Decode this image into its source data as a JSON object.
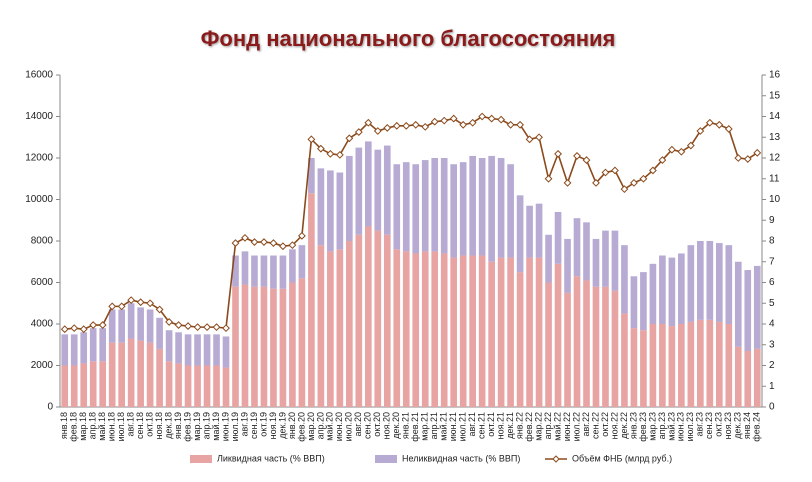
{
  "chart_data": {
    "type": "bar",
    "title": "Фонд национального благосостояния",
    "categories": [
      "янв.18",
      "фев.18",
      "мар.18",
      "апр.18",
      "май.18",
      "июн.18",
      "июл.18",
      "авг.18",
      "сен.18",
      "окт.18",
      "ноя.18",
      "дек.18",
      "янв.19",
      "фев.19",
      "мар.19",
      "апр.19",
      "май.19",
      "июн.19",
      "июл.19",
      "авг.19",
      "сен.19",
      "окт.19",
      "ноя.19",
      "дек.19",
      "янв.20",
      "фев.20",
      "мар.20",
      "апр.20",
      "май.20",
      "июн.20",
      "июл.20",
      "авг.20",
      "сен.20",
      "окт.20",
      "ноя.20",
      "дек.20",
      "янв.21",
      "фев.21",
      "мар.21",
      "апр.21",
      "май.21",
      "июн.21",
      "июл.21",
      "авг.21",
      "сен.21",
      "окт.21",
      "ноя.21",
      "дек.21",
      "янв.22",
      "фев.22",
      "мар.22",
      "апр.22",
      "май.22",
      "июн.22",
      "июл.22",
      "авг.22",
      "сен.22",
      "окт.22",
      "ноя.22",
      "дек.22",
      "янв.23",
      "фев.23",
      "мар.23",
      "апр.23",
      "май.23",
      "июн.23",
      "июл.23",
      "авг.23",
      "сен.23",
      "окт.23",
      "ноя.23",
      "дек.23",
      "янв.24",
      "фев.24"
    ],
    "series": [
      {
        "name": "Ликвидная часть (% ВВП)",
        "type": "bar",
        "axis": "y2",
        "color": "#e8a3a3",
        "values": [
          2.0,
          2.0,
          2.1,
          2.2,
          2.2,
          3.1,
          3.1,
          3.3,
          3.2,
          3.1,
          2.8,
          2.2,
          2.1,
          2.0,
          2.0,
          2.0,
          2.0,
          1.9,
          5.8,
          5.9,
          5.8,
          5.8,
          5.7,
          5.7,
          6.0,
          6.2,
          10.3,
          7.8,
          7.5,
          7.6,
          8.0,
          8.3,
          8.7,
          8.5,
          8.3,
          7.6,
          7.5,
          7.4,
          7.5,
          7.5,
          7.4,
          7.2,
          7.3,
          7.3,
          7.3,
          7.0,
          7.2,
          7.2,
          6.5,
          7.2,
          7.2,
          6.0,
          6.9,
          5.5,
          6.3,
          6.1,
          5.8,
          5.8,
          5.6,
          4.5,
          3.8,
          3.7,
          4.0,
          4.0,
          3.9,
          4.0,
          4.1,
          4.2,
          4.2,
          4.1,
          4.0,
          2.9,
          2.7,
          2.8
        ]
      },
      {
        "name": "Неликвидная часть (% ВВП)",
        "type": "bar",
        "axis": "y2",
        "color": "#b7abd3",
        "values": [
          1.5,
          1.5,
          1.5,
          1.6,
          1.6,
          1.6,
          1.6,
          1.7,
          1.6,
          1.6,
          1.5,
          1.5,
          1.5,
          1.5,
          1.5,
          1.5,
          1.5,
          1.5,
          1.5,
          1.6,
          1.5,
          1.5,
          1.6,
          1.6,
          1.6,
          1.6,
          1.7,
          3.7,
          3.9,
          3.7,
          4.1,
          4.2,
          4.1,
          3.9,
          4.3,
          4.1,
          4.3,
          4.3,
          4.4,
          4.5,
          4.6,
          4.5,
          4.5,
          4.8,
          4.7,
          5.1,
          4.8,
          4.5,
          3.7,
          2.5,
          2.6,
          2.3,
          2.5,
          2.6,
          2.8,
          2.8,
          2.3,
          2.7,
          2.9,
          3.3,
          2.5,
          2.8,
          2.9,
          3.3,
          3.3,
          3.4,
          3.7,
          3.8,
          3.8,
          3.8,
          3.8,
          4.1,
          3.9,
          4.0
        ]
      },
      {
        "name": "Объём ФНБ (млрд руб.)",
        "type": "line",
        "color": "#8b4a1c",
        "values": [
          3750,
          3800,
          3750,
          3950,
          3950,
          4850,
          4850,
          5150,
          5050,
          5000,
          4700,
          4100,
          3950,
          3900,
          3850,
          3850,
          3850,
          3800,
          7900,
          8150,
          7950,
          7950,
          7900,
          7750,
          7800,
          8250,
          12900,
          12450,
          12200,
          12150,
          12950,
          13250,
          13700,
          13300,
          13450,
          13550,
          13550,
          13600,
          13500,
          13750,
          13800,
          13900,
          13600,
          13700,
          14000,
          13900,
          13850,
          13600,
          13600,
          12900,
          13000,
          11000,
          12200,
          10800,
          12100,
          11900,
          10800,
          11300,
          11400,
          10500,
          10800,
          11000,
          11400,
          11900,
          12400,
          12300,
          12600,
          13300,
          13700,
          13600,
          13400,
          12000,
          11950,
          12250
        ]
      }
    ],
    "ylim": [
      0,
      16000
    ],
    "yticks": [
      0,
      2000,
      4000,
      6000,
      8000,
      10000,
      12000,
      14000,
      16000
    ],
    "y2lim": [
      0,
      16
    ],
    "y2ticks": [
      0,
      1,
      2,
      3,
      4,
      5,
      6,
      7,
      8,
      9,
      10,
      11,
      12,
      13,
      14,
      15,
      16
    ],
    "grid": false,
    "legend": "bottom"
  }
}
